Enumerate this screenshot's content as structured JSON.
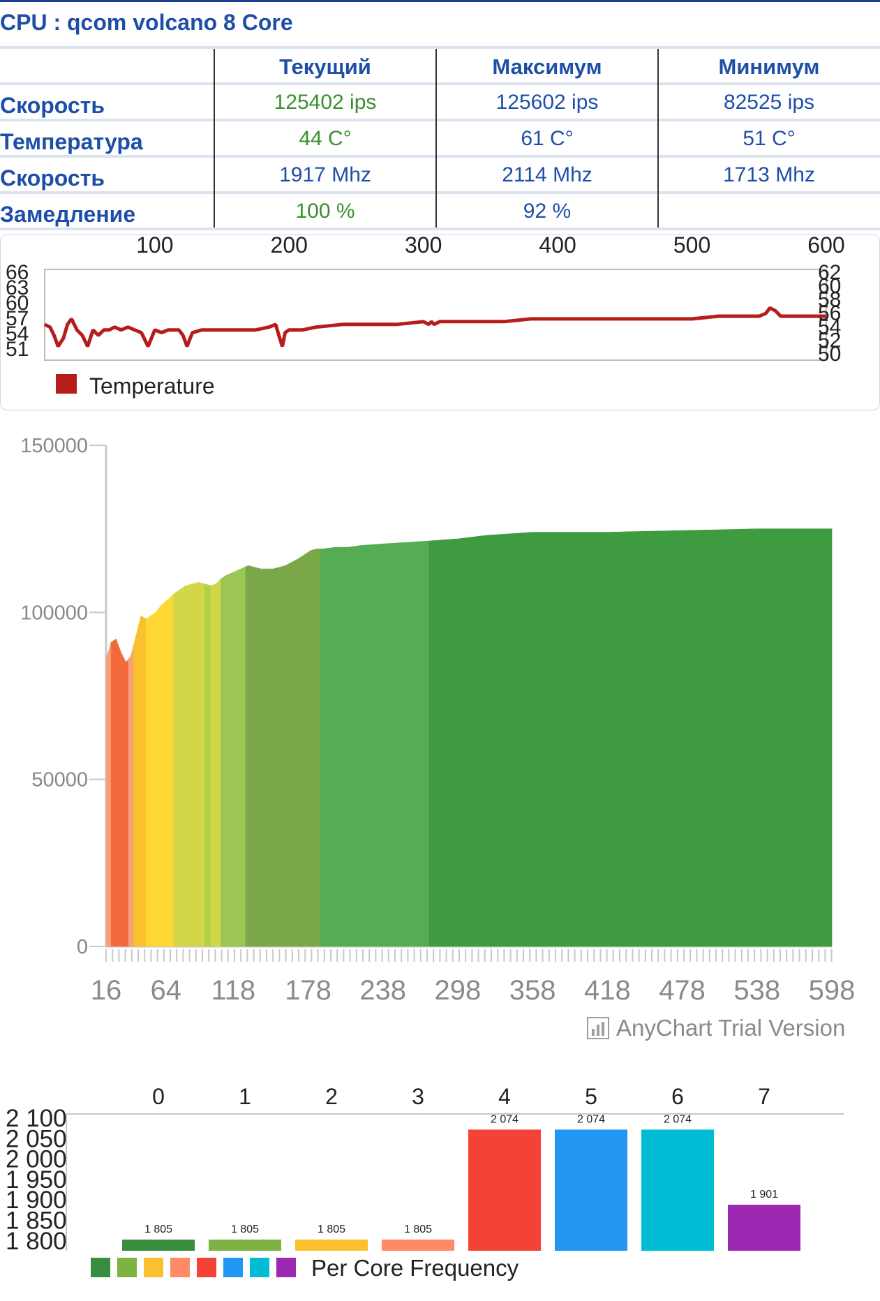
{
  "title": "CPU : qcom volcano 8 Core",
  "table": {
    "columns": [
      "Текущий",
      "Максимум",
      "Минимум"
    ],
    "rows": [
      {
        "label": "Скорость",
        "values": [
          "125402 ips",
          "125602 ips",
          "82525 ips"
        ]
      },
      {
        "label": "Температура",
        "values": [
          "44 C°",
          "61 C°",
          "51 C°"
        ]
      },
      {
        "label": "Скорость",
        "values": [
          "1917 Mhz",
          "2114 Mhz",
          "1713 Mhz"
        ]
      },
      {
        "label": "Замедление",
        "values": [
          "100 %",
          "92 %",
          ""
        ]
      }
    ]
  },
  "colors": {
    "accent": "#1e4fa8",
    "current": "#3b8f2e",
    "temperature": "#b71c1c"
  },
  "chart_data": [
    {
      "type": "line",
      "legend": "Temperature",
      "x_ticks": [
        100,
        200,
        300,
        400,
        500,
        600
      ],
      "y_ticks_left": [
        66,
        63,
        60,
        57,
        54,
        51
      ],
      "y_ticks_right": [
        62,
        60,
        58,
        56,
        54,
        52,
        50
      ],
      "xlim": [
        18,
        600
      ],
      "ylim": [
        50.5,
        67
      ],
      "series": [
        {
          "x": [
            18,
            22,
            25,
            28,
            32,
            35,
            38,
            42,
            46,
            50,
            54,
            58,
            62,
            66,
            70,
            75,
            80,
            85,
            90,
            95,
            100,
            105,
            110,
            115,
            118,
            121,
            124,
            128,
            135,
            145,
            155,
            165,
            175,
            185,
            190,
            193,
            195,
            197,
            200,
            210,
            220,
            240,
            260,
            280,
            300,
            304,
            306,
            308,
            312,
            320,
            340,
            360,
            380,
            400,
            420,
            440,
            460,
            480,
            500,
            520,
            540,
            550,
            555,
            558,
            562,
            566,
            570,
            580,
            590,
            600
          ],
          "y": [
            57,
            56.5,
            55,
            53,
            54.5,
            57,
            58,
            56,
            55,
            53,
            56,
            55,
            56,
            56,
            56.5,
            56,
            56.5,
            56,
            55.5,
            53,
            56,
            55.5,
            56,
            56,
            56,
            55,
            53,
            55.5,
            56,
            56,
            56,
            56,
            56,
            56.5,
            57,
            54.5,
            53,
            55.5,
            56,
            56,
            56.5,
            57,
            57,
            57,
            57.5,
            57,
            57.5,
            57,
            57.5,
            57.5,
            57.5,
            57.5,
            58,
            58,
            58,
            58,
            58,
            58,
            58,
            58.5,
            58.5,
            58.5,
            59,
            60,
            59.5,
            58.5,
            58.5,
            58.5,
            58.5,
            58.5
          ]
        }
      ]
    },
    {
      "type": "area",
      "y_ticks": [
        150000,
        100000,
        50000,
        0
      ],
      "x_ticks": [
        16,
        64,
        118,
        178,
        238,
        298,
        358,
        418,
        478,
        538,
        598
      ],
      "ylim": [
        0,
        150000
      ],
      "xlim": [
        16,
        598
      ],
      "watermark": "AnyChart Trial Version",
      "series": [
        {
          "x": [
            16,
            20,
            24,
            28,
            32,
            36,
            40,
            44,
            48,
            52,
            56,
            60,
            66,
            72,
            80,
            90,
            100,
            104,
            108,
            112,
            118,
            124,
            130,
            140,
            150,
            160,
            170,
            176,
            180,
            185,
            190,
            200,
            210,
            220,
            238,
            260,
            280,
            298,
            320,
            358,
            400,
            418,
            478,
            538,
            598
          ],
          "y": [
            86000,
            91000,
            92000,
            88000,
            85000,
            87000,
            93000,
            99000,
            98000,
            99000,
            100000,
            102000,
            104000,
            106000,
            108000,
            109000,
            108000,
            108500,
            110000,
            111000,
            112000,
            113000,
            114000,
            113000,
            113000,
            114000,
            116000,
            117500,
            118500,
            119000,
            119000,
            119500,
            119500,
            120000,
            120500,
            121000,
            121500,
            122000,
            123000,
            124000,
            124000,
            124000,
            124500,
            125000,
            125000
          ]
        }
      ],
      "color_bands": [
        {
          "from": 16,
          "to": 20,
          "color": "#f9a07a"
        },
        {
          "from": 20,
          "to": 34,
          "color": "#f26a3c"
        },
        {
          "from": 34,
          "to": 38,
          "color": "#f9a07a"
        },
        {
          "from": 38,
          "to": 48,
          "color": "#fbc02d"
        },
        {
          "from": 48,
          "to": 70,
          "color": "#fdd835"
        },
        {
          "from": 70,
          "to": 95,
          "color": "#d4d64a"
        },
        {
          "from": 95,
          "to": 100,
          "color": "#b6cf49"
        },
        {
          "from": 100,
          "to": 108,
          "color": "#d4d64a"
        },
        {
          "from": 108,
          "to": 128,
          "color": "#9bc653"
        },
        {
          "from": 128,
          "to": 188,
          "color": "#7aa848"
        },
        {
          "from": 188,
          "to": 275,
          "color": "#55ac55"
        },
        {
          "from": 275,
          "to": 598,
          "color": "#3f9b3f"
        }
      ]
    },
    {
      "type": "bar",
      "legend": "Per Core Frequency",
      "categories": [
        "0",
        "1",
        "2",
        "3",
        "4",
        "5",
        "6",
        "7"
      ],
      "values": [
        1805,
        1805,
        1805,
        1805,
        2074,
        2074,
        2074,
        1901
      ],
      "value_labels": [
        "1 805",
        "1 805",
        "1 805",
        "1 805",
        "2 074",
        "2 074",
        "2 074",
        "1 901"
      ],
      "colors": [
        "#388e3c",
        "#7cb342",
        "#fbc02d",
        "#ff8a65",
        "#f44336",
        "#2196f3",
        "#00bcd4",
        "#9c27b0"
      ],
      "y_ticks": [
        "2 100",
        "2 050",
        "2 000",
        "1 950",
        "1 900",
        "1 850",
        "1 800"
      ],
      "ylim": [
        1795,
        2110
      ]
    }
  ]
}
